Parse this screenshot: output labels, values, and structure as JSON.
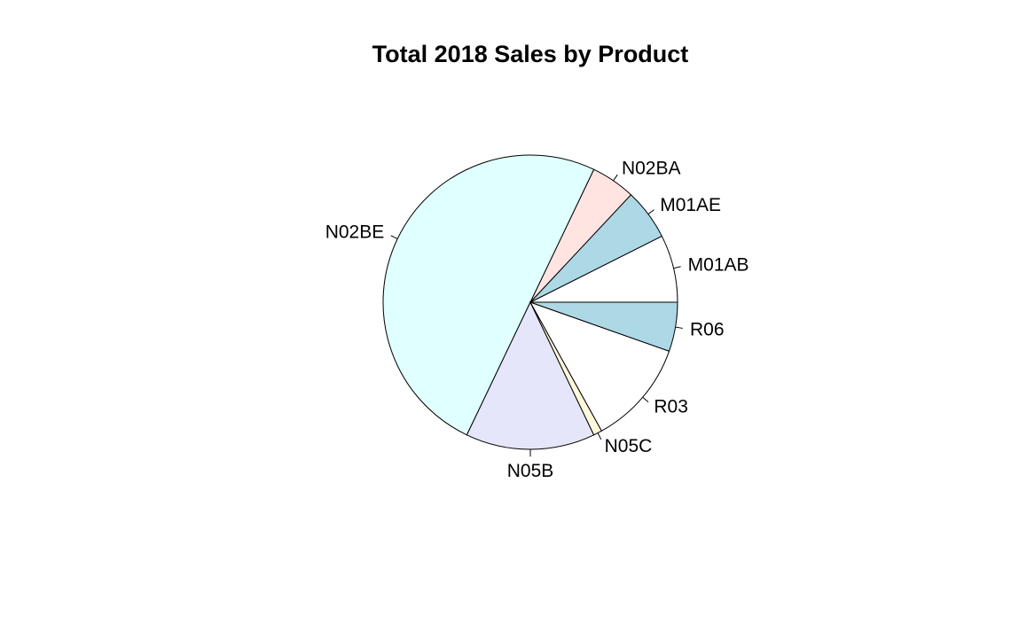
{
  "chart_data": {
    "type": "pie",
    "title": "Total 2018 Sales by Product",
    "start_angle_deg": 0,
    "direction": "counterclockwise",
    "slices": [
      {
        "label": "M01AB",
        "value": 7.0,
        "color": "#FFFFFF"
      },
      {
        "label": "M01AE",
        "value": 5.3,
        "color": "#ADD8E6"
      },
      {
        "label": "N02BA",
        "value": 4.6,
        "color": "#FFE4E1"
      },
      {
        "label": "N02BE",
        "value": 47.2,
        "color": "#E0FFFF"
      },
      {
        "label": "N05B",
        "value": 13.4,
        "color": "#E6E6FA"
      },
      {
        "label": "N05C",
        "value": 0.9,
        "color": "#FFF8DC"
      },
      {
        "label": "R03",
        "value": 10.9,
        "color": "#FFFFFF"
      },
      {
        "label": "R06",
        "value": 5.1,
        "color": "#ADD8E6"
      }
    ]
  }
}
